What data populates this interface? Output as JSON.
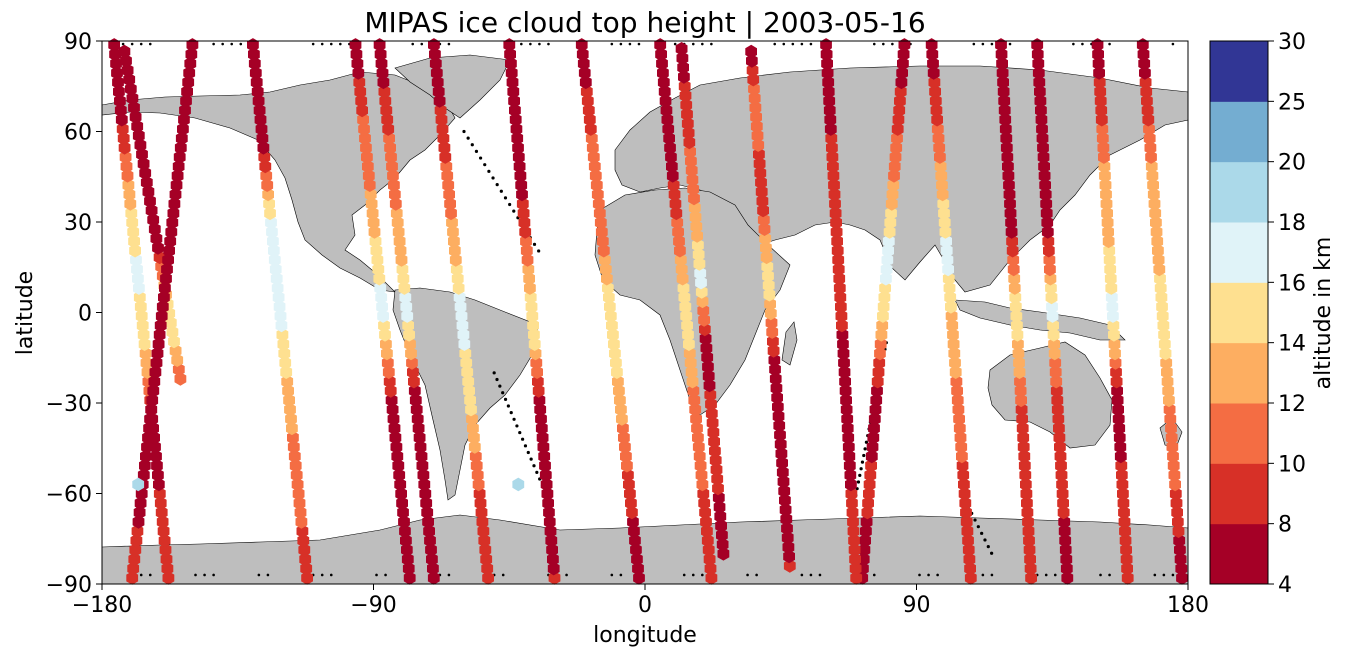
{
  "chart_data": {
    "type": "scatter",
    "title": "MIPAS ice cloud top height | 2003-05-16",
    "xlabel": "longitude",
    "ylabel": "latitude",
    "xlim": [
      -180,
      180
    ],
    "ylim": [
      -90,
      90
    ],
    "x_ticks": [
      {
        "value": -180,
        "label": "−180"
      },
      {
        "value": -90,
        "label": "−90"
      },
      {
        "value": 0,
        "label": "0"
      },
      {
        "value": 90,
        "label": "90"
      },
      {
        "value": 180,
        "label": "180"
      }
    ],
    "y_ticks": [
      {
        "value": 90,
        "label": "90"
      },
      {
        "value": 60,
        "label": "60"
      },
      {
        "value": 30,
        "label": "30"
      },
      {
        "value": 0,
        "label": "0"
      },
      {
        "value": -30,
        "label": "−30"
      },
      {
        "value": -60,
        "label": "−60"
      },
      {
        "value": -90,
        "label": "−90"
      }
    ],
    "grid": false,
    "land_color": "#bebebe",
    "colorbar": {
      "label": "altitude in km",
      "placement": "right",
      "bins": [
        {
          "from": 4,
          "to": 8,
          "color": "#a50026"
        },
        {
          "from": 8,
          "to": 10,
          "color": "#d73027"
        },
        {
          "from": 10,
          "to": 12,
          "color": "#f46d43"
        },
        {
          "from": 12,
          "to": 14,
          "color": "#fdae61"
        },
        {
          "from": 14,
          "to": 16,
          "color": "#fee090"
        },
        {
          "from": 16,
          "to": 18,
          "color": "#e0f3f8"
        },
        {
          "from": 18,
          "to": 20,
          "color": "#abd9e9"
        },
        {
          "from": 20,
          "to": 25,
          "color": "#74add1"
        },
        {
          "from": 25,
          "to": 30,
          "color": "#313695"
        }
      ],
      "ticks": [
        "4",
        "8",
        "10",
        "12",
        "14",
        "16",
        "18",
        "20",
        "25",
        "30"
      ]
    },
    "orbits": [
      {
        "lon_north": -173,
        "lon_south": -154,
        "lat_min": -22,
        "profile": [
          [
            -22,
            10
          ],
          [
            -5,
            16
          ],
          [
            8,
            13
          ],
          [
            25,
            6
          ],
          [
            55,
            6
          ],
          [
            90,
            6
          ]
        ]
      },
      {
        "lon_north": -176,
        "lon_south": -158,
        "lat_min": -88,
        "profile": [
          [
            -88,
            8
          ],
          [
            -70,
            9
          ],
          [
            -40,
            6
          ],
          [
            -10,
            15
          ],
          [
            5,
            16
          ],
          [
            20,
            16
          ],
          [
            40,
            13
          ],
          [
            70,
            6
          ],
          [
            90,
            6
          ]
        ]
      },
      {
        "lon_north": -130,
        "lon_south": -112,
        "lat_min": -88,
        "profile": [
          [
            -88,
            8
          ],
          [
            -70,
            10
          ],
          [
            -40,
            12
          ],
          [
            -20,
            14
          ],
          [
            0,
            17
          ],
          [
            30,
            16
          ],
          [
            60,
            6
          ],
          [
            90,
            6
          ]
        ]
      },
      {
        "lon_north": -96,
        "lon_south": -78,
        "lat_min": -88,
        "profile": [
          [
            -88,
            6
          ],
          [
            -60,
            6
          ],
          [
            -30,
            7
          ],
          [
            0,
            17
          ],
          [
            20,
            15
          ],
          [
            40,
            12
          ],
          [
            60,
            11
          ],
          [
            90,
            6
          ]
        ]
      },
      {
        "lon_north": -88,
        "lon_south": -70,
        "lat_min": -88,
        "profile": [
          [
            -88,
            6
          ],
          [
            -60,
            7
          ],
          [
            -30,
            6
          ],
          [
            0,
            17
          ],
          [
            20,
            13
          ],
          [
            50,
            11
          ],
          [
            90,
            6
          ]
        ]
      },
      {
        "lon_north": -70,
        "lon_south": -52,
        "lat_min": -88,
        "profile": [
          [
            -88,
            9
          ],
          [
            -60,
            10
          ],
          [
            -35,
            14
          ],
          [
            0,
            17
          ],
          [
            20,
            13
          ],
          [
            40,
            11
          ],
          [
            90,
            6
          ]
        ]
      },
      {
        "lon_north": -45,
        "lon_south": -30,
        "lat_min": -88,
        "profile": [
          [
            -88,
            8
          ],
          [
            -60,
            6
          ],
          [
            -30,
            7
          ],
          [
            -5,
            16
          ],
          [
            20,
            11
          ],
          [
            50,
            6
          ],
          [
            90,
            6
          ]
        ]
      },
      {
        "lon_north": -21,
        "lon_south": -2,
        "lat_min": -88,
        "profile": [
          [
            -88,
            6
          ],
          [
            -60,
            9
          ],
          [
            -30,
            13
          ],
          [
            0,
            16
          ],
          [
            30,
            10
          ],
          [
            60,
            10
          ],
          [
            90,
            6
          ]
        ]
      },
      {
        "lon_north": 5,
        "lon_south": 22,
        "lat_min": -88,
        "profile": [
          [
            -88,
            8
          ],
          [
            -60,
            10
          ],
          [
            -30,
            11
          ],
          [
            0,
            16
          ],
          [
            30,
            10
          ],
          [
            60,
            6
          ],
          [
            90,
            6
          ]
        ]
      },
      {
        "lon_north": 12,
        "lon_south": 26,
        "lat_min": -80,
        "profile": [
          [
            -80,
            6
          ],
          [
            -40,
            10
          ],
          [
            -10,
            6
          ],
          [
            10,
            17
          ],
          [
            40,
            11
          ],
          [
            70,
            9
          ],
          [
            90,
            6
          ]
        ]
      },
      {
        "lon_north": 35,
        "lon_south": 48,
        "lat_min": -84,
        "profile": [
          [
            -84,
            8
          ],
          [
            -60,
            6
          ],
          [
            -20,
            6
          ],
          [
            10,
            16
          ],
          [
            40,
            8
          ],
          [
            70,
            12
          ],
          [
            90,
            6
          ]
        ]
      },
      {
        "lon_north": 86,
        "lon_south": 72,
        "lat_min": -88,
        "profile": [
          [
            -88,
            6
          ],
          [
            -60,
            9
          ],
          [
            -30,
            6
          ],
          [
            0,
            15
          ],
          [
            20,
            17
          ],
          [
            50,
            11
          ],
          [
            90,
            6
          ]
        ]
      },
      {
        "lon_north": 95,
        "lon_south": 108,
        "lat_min": -88,
        "profile": [
          [
            -88,
            8
          ],
          [
            -50,
            10
          ],
          [
            -20,
            12
          ],
          [
            0,
            14
          ],
          [
            20,
            17
          ],
          [
            50,
            12
          ],
          [
            90,
            6
          ]
        ]
      },
      {
        "lon_north": 118,
        "lon_south": 128,
        "lat_min": -88,
        "profile": [
          [
            -88,
            8
          ],
          [
            -60,
            9
          ],
          [
            -30,
            10
          ],
          [
            0,
            16
          ],
          [
            30,
            6
          ],
          [
            60,
            6
          ],
          [
            90,
            6
          ]
        ]
      },
      {
        "lon_north": 130,
        "lon_south": 140,
        "lat_min": -88,
        "profile": [
          [
            -88,
            6
          ],
          [
            -60,
            9
          ],
          [
            -30,
            8
          ],
          [
            0,
            17
          ],
          [
            30,
            6
          ],
          [
            60,
            6
          ],
          [
            90,
            6
          ]
        ]
      },
      {
        "lon_north": 150,
        "lon_south": 160,
        "lat_min": -88,
        "profile": [
          [
            -88,
            8
          ],
          [
            -60,
            9
          ],
          [
            -30,
            6
          ],
          [
            0,
            17
          ],
          [
            30,
            13
          ],
          [
            50,
            12
          ],
          [
            90,
            6
          ]
        ]
      },
      {
        "lon_north": 165,
        "lon_south": 178,
        "lat_min": -88,
        "profile": [
          [
            -88,
            6
          ],
          [
            -60,
            10
          ],
          [
            -30,
            12
          ],
          [
            0,
            16
          ],
          [
            20,
            13
          ],
          [
            50,
            12
          ],
          [
            90,
            6
          ]
        ]
      },
      {
        "lon_north": -150,
        "lon_south": -170,
        "lat_min": -88,
        "profile": [
          [
            -88,
            8
          ],
          [
            -70,
            8
          ],
          [
            -40,
            6
          ],
          [
            -20,
            6
          ],
          [
            0,
            8
          ],
          [
            30,
            6
          ],
          [
            90,
            6
          ]
        ]
      },
      {
        "lon_north": 60,
        "lon_south": 70,
        "lat_min": -88,
        "profile": [
          [
            -88,
            8
          ],
          [
            -60,
            8
          ],
          [
            -40,
            6
          ],
          [
            -20,
            6
          ],
          [
            0,
            9
          ],
          [
            30,
            10
          ],
          [
            90,
            6
          ]
        ]
      }
    ],
    "isolated_points": [
      {
        "lon": -168,
        "lat": -57,
        "alt_km": 19
      },
      {
        "lon": -42,
        "lat": -57,
        "alt_km": 18
      }
    ],
    "no_cloud_tracks": [
      {
        "lon_north": -60,
        "lon_south": -35,
        "lat_from": 60,
        "lat_to": 20
      },
      {
        "lon_north": -50,
        "lon_south": -32,
        "lat_from": -20,
        "lat_to": -62
      },
      {
        "lon_north": 80,
        "lon_south": 68,
        "lat_from": -10,
        "lat_to": -70
      },
      {
        "lon_north": 105,
        "lon_south": 115,
        "lat_from": -60,
        "lat_to": -80
      }
    ]
  }
}
